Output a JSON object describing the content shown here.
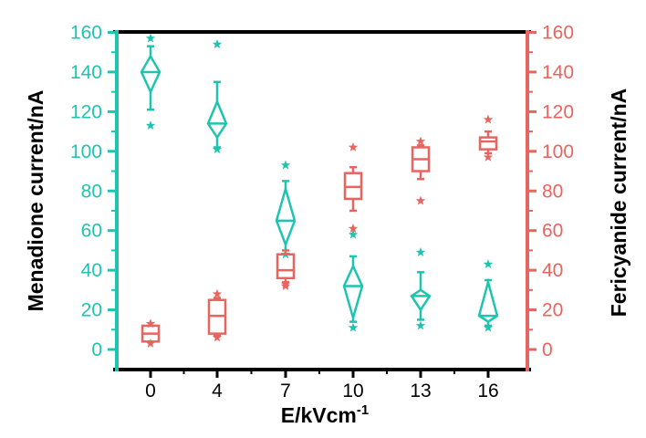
{
  "chart_data": {
    "type": "box",
    "xlabel": "E/kVcm",
    "xlabel_superscript": "-1",
    "categories": [
      "0",
      "4",
      "7",
      "10",
      "13",
      "16"
    ],
    "ylim_left": [
      -5,
      160
    ],
    "ylim_right": [
      -5,
      160
    ],
    "yticks": [
      "0",
      "20",
      "40",
      "60",
      "80",
      "100",
      "120",
      "140",
      "160"
    ],
    "grid": false,
    "series": [
      {
        "name": "Menadione current/nA",
        "axis": "left",
        "color": "#1fc4b0",
        "shape": "diamond",
        "boxes": [
          {
            "q1": 130,
            "median": 140,
            "q3": 148,
            "whisker_low": 121,
            "whisker_high": 153,
            "outlier_low": 113,
            "outlier_high": 157
          },
          {
            "q1": 107,
            "median": 114,
            "q3": 125,
            "whisker_low": 102,
            "whisker_high": 135,
            "outlier_low": 101,
            "outlier_high": 154
          },
          {
            "q1": 53,
            "median": 65,
            "q3": 81,
            "whisker_low": 48,
            "whisker_high": 85,
            "outlier_low": 48,
            "outlier_high": 93
          },
          {
            "q1": 16,
            "median": 32,
            "q3": 42,
            "whisker_low": 14,
            "whisker_high": 47,
            "outlier_low": 11,
            "outlier_high": 58
          },
          {
            "q1": 20,
            "median": 27,
            "q3": 30,
            "whisker_low": 15,
            "whisker_high": 39,
            "outlier_low": 12,
            "outlier_high": 49
          },
          {
            "q1": 14,
            "median": 17,
            "q3": 34,
            "whisker_low": 12,
            "whisker_high": 35,
            "outlier_low": 11,
            "outlier_high": 43
          }
        ]
      },
      {
        "name": "Fericyanide current/nA",
        "axis": "right",
        "color": "#e8645f",
        "shape": "rect",
        "boxes": [
          {
            "q1": 4,
            "median": 8,
            "q3": 12,
            "whisker_low": 4,
            "whisker_high": 12,
            "outlier_low": 3,
            "outlier_high": 13
          },
          {
            "q1": 8,
            "median": 17,
            "q3": 25,
            "whisker_low": 7,
            "whisker_high": 26,
            "outlier_low": 6,
            "outlier_high": 28
          },
          {
            "q1": 36,
            "median": 40,
            "q3": 48,
            "whisker_low": 34,
            "whisker_high": 50,
            "outlier_low": 32,
            "outlier_high": 33
          },
          {
            "q1": 76,
            "median": 82,
            "q3": 89,
            "whisker_low": 70,
            "whisker_high": 92,
            "outlier_low": 61,
            "outlier_high": 102
          },
          {
            "q1": 90,
            "median": 96,
            "q3": 102,
            "whisker_low": 86,
            "whisker_high": 103,
            "outlier_low": 75,
            "outlier_high": 105
          },
          {
            "q1": 101,
            "median": 105,
            "q3": 107,
            "whisker_low": 99,
            "whisker_high": 110,
            "outlier_low": 97,
            "outlier_high": 116
          }
        ]
      }
    ]
  }
}
